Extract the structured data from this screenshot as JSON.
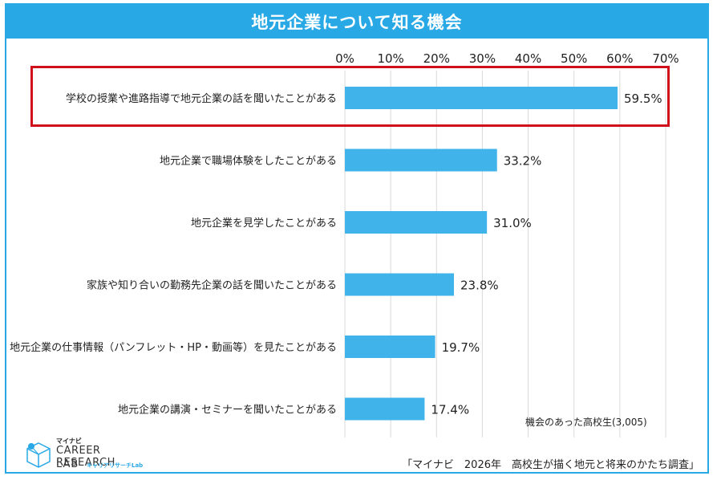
{
  "header": {
    "title": "地元企業について知る機会"
  },
  "chart_data": {
    "type": "bar",
    "orientation": "horizontal",
    "categories": [
      "学校の授業や進路指導で地元企業の話を聞いたことがある",
      "地元企業で職場体験をしたことがある",
      "地元企業を見学したことがある",
      "家族や知り合いの勤務先企業の話を聞いたことがある",
      "地元企業の仕事情報（パンフレット・HP・動画等）を見たことがある",
      "地元企業の講演・セミナーを聞いたことがある"
    ],
    "values": [
      59.5,
      33.2,
      31.0,
      23.8,
      19.7,
      17.4
    ],
    "data_labels": [
      "59.5%",
      "33.2%",
      "31.0%",
      "23.8%",
      "19.7%",
      "17.4%"
    ],
    "xlim": [
      0,
      70
    ],
    "ticks": [
      0,
      10,
      20,
      30,
      40,
      50,
      60,
      70
    ],
    "tick_labels": [
      "0%",
      "10%",
      "20%",
      "30%",
      "40%",
      "50%",
      "60%",
      "70%"
    ],
    "axis_position": "top",
    "grid": true,
    "highlighted_index": 0,
    "bar_color": "#3fb3ea",
    "grid_color": "#d9d9d9",
    "highlight_color": "#d0111b"
  },
  "note": "機会のあった高校生(3,005)",
  "source": "「マイナビ　2026年　高校生が描く地元と将来のかたち調査」",
  "logo": {
    "brand": "マイナビ",
    "line1": "CAREER RESEARCH",
    "line2": "LAB",
    "sub": "キャリアリサーチLab"
  },
  "colors": {
    "accent": "#29a8e6"
  }
}
